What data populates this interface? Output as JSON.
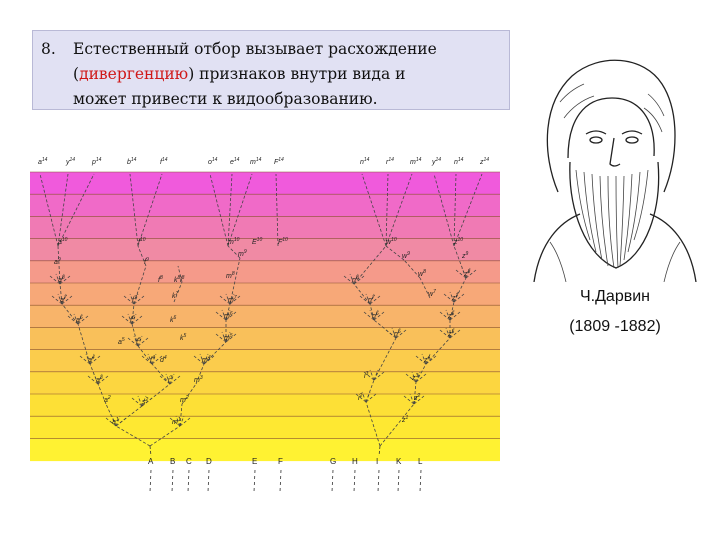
{
  "point": {
    "number": "8.",
    "line1": "Естественный отбор вызывает расхождение",
    "paren_open": "(",
    "highlight": "дивергенцию",
    "line2_rest": ") признаков внутри вида и",
    "line3": "может привести к видообразованию."
  },
  "diagram": {
    "band_colors": [
      "#f05adc",
      "#f06ac8",
      "#f07ab4",
      "#f08aa4",
      "#f59a8a",
      "#f7a878",
      "#f8b46a",
      "#f9c05a",
      "#fbcc4c",
      "#fcd640",
      "#fde036",
      "#fee832",
      "#fff232"
    ],
    "top_labels": [
      {
        "base": "a",
        "sup": "14"
      },
      {
        "base": "y",
        "sup": "14"
      },
      {
        "base": "p",
        "sup": "14"
      },
      {
        "base": "b",
        "sup": "14"
      },
      {
        "base": "f",
        "sup": "14"
      },
      {
        "base": "o",
        "sup": "14"
      },
      {
        "base": "e",
        "sup": "14"
      },
      {
        "base": "m",
        "sup": "14"
      },
      {
        "base": "F",
        "sup": "14"
      },
      {
        "base": "n",
        "sup": "14"
      },
      {
        "base": "r",
        "sup": "14"
      },
      {
        "base": "m",
        "sup": "14"
      },
      {
        "base": "y",
        "sup": "14"
      },
      {
        "base": "n",
        "sup": "14"
      },
      {
        "base": "z",
        "sup": "14"
      }
    ],
    "mid_labels": [
      {
        "base": "a",
        "sup": "10"
      },
      {
        "base": "f",
        "sup": "10"
      },
      {
        "base": "m",
        "sup": "10"
      },
      {
        "base": "E",
        "sup": "10"
      },
      {
        "base": "F",
        "sup": "10"
      },
      {
        "base": "w",
        "sup": "10"
      },
      {
        "base": "z",
        "sup": "10"
      }
    ],
    "inner_labels": [
      {
        "base": "a",
        "sup": "9"
      },
      {
        "base": "f",
        "sup": "9"
      },
      {
        "base": "m",
        "sup": "9"
      },
      {
        "base": "w",
        "sup": "9"
      },
      {
        "base": "z",
        "sup": "9"
      },
      {
        "base": "a",
        "sup": "8"
      },
      {
        "base": "f",
        "sup": "8"
      },
      {
        "base": "k",
        "sup": "8"
      },
      {
        "base": "l",
        "sup": "8"
      },
      {
        "base": "m",
        "sup": "8"
      },
      {
        "base": "n",
        "sup": "8"
      },
      {
        "base": "w",
        "sup": "8"
      },
      {
        "base": "z",
        "sup": "8"
      },
      {
        "base": "a",
        "sup": "7"
      },
      {
        "base": "f",
        "sup": "7"
      },
      {
        "base": "k",
        "sup": "7"
      },
      {
        "base": "m",
        "sup": "7"
      },
      {
        "base": "n",
        "sup": "7"
      },
      {
        "base": "w",
        "sup": "7"
      },
      {
        "base": "z",
        "sup": "7"
      },
      {
        "base": "a",
        "sup": "6"
      },
      {
        "base": "f",
        "sup": "6"
      },
      {
        "base": "k",
        "sup": "6"
      },
      {
        "base": "m",
        "sup": "6"
      },
      {
        "base": "n",
        "sup": "6"
      },
      {
        "base": "z",
        "sup": "6"
      },
      {
        "base": "a",
        "sup": "5"
      },
      {
        "base": "f",
        "sup": "5"
      },
      {
        "base": "k",
        "sup": "5"
      },
      {
        "base": "m",
        "sup": "5"
      },
      {
        "base": "n",
        "sup": "5"
      },
      {
        "base": "z",
        "sup": "5"
      },
      {
        "base": "a",
        "sup": "4"
      },
      {
        "base": "f",
        "sup": "4"
      },
      {
        "base": "d",
        "sup": "4"
      },
      {
        "base": "m",
        "sup": "4"
      },
      {
        "base": "z",
        "sup": "4"
      },
      {
        "base": "a",
        "sup": "3"
      },
      {
        "base": "i",
        "sup": "3"
      },
      {
        "base": "m",
        "sup": "3"
      },
      {
        "base": "i",
        "sup": "3"
      },
      {
        "base": "z",
        "sup": "3"
      },
      {
        "base": "a",
        "sup": "2"
      },
      {
        "base": "s",
        "sup": "2"
      },
      {
        "base": "m",
        "sup": "2"
      },
      {
        "base": "i",
        "sup": "2"
      },
      {
        "base": "z",
        "sup": "2"
      },
      {
        "base": "a",
        "sup": "1"
      },
      {
        "base": "m",
        "sup": "1"
      },
      {
        "base": "z",
        "sup": "1"
      }
    ],
    "bottom_labels": [
      "A",
      "B",
      "C",
      "D",
      "E",
      "F",
      "G",
      "H",
      "I",
      "K",
      "L"
    ]
  },
  "portrait": {
    "name": "Ч.Дарвин",
    "years": "(1809 -1882)"
  }
}
